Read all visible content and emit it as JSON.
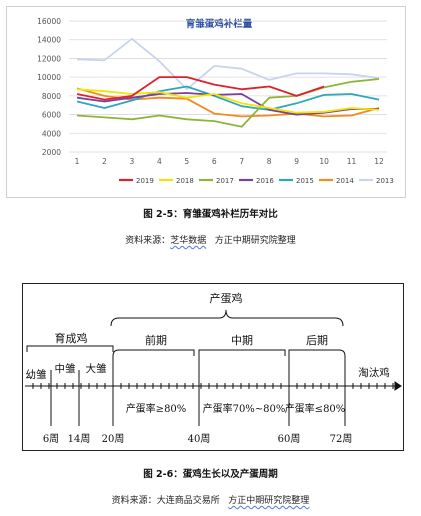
{
  "chart_data": {
    "type": "line",
    "title": "育雏蛋鸡补栏量",
    "categories": [
      1,
      2,
      3,
      4,
      5,
      6,
      7,
      8,
      9,
      10,
      11,
      12
    ],
    "ylim": [
      2000,
      16000
    ],
    "yticks": [
      2000,
      4000,
      6000,
      8000,
      10000,
      12000,
      14000,
      16000
    ],
    "grid": true,
    "legend_placement": "bottom",
    "series": [
      {
        "name": "2019",
        "color": "#e0202a",
        "values": [
          8200,
          7600,
          8000,
          10000,
          10000,
          9200,
          8700,
          9000,
          8000,
          9000,
          null,
          null
        ]
      },
      {
        "name": "2018",
        "color": "#f2e600",
        "values": [
          8700,
          8500,
          8200,
          8400,
          7800,
          8200,
          7200,
          6700,
          6200,
          6300,
          6700,
          6500
        ]
      },
      {
        "name": "2017",
        "color": "#8fb43a",
        "values": [
          5900,
          5700,
          5500,
          5900,
          5500,
          5300,
          4700,
          7800,
          8000,
          8900,
          9500,
          9800
        ]
      },
      {
        "name": "2016",
        "color": "#7b3fa0",
        "values": [
          7800,
          7400,
          7800,
          8200,
          8300,
          8100,
          8200,
          6500,
          6000,
          6200,
          6600,
          6600
        ]
      },
      {
        "name": "2015",
        "color": "#2fa6bf",
        "values": [
          7400,
          6700,
          7500,
          8500,
          9000,
          8000,
          6900,
          6500,
          7200,
          8100,
          8200,
          7600
        ]
      },
      {
        "name": "2014",
        "color": "#f28a1e",
        "values": [
          8800,
          8000,
          7600,
          7800,
          7700,
          6100,
          5800,
          5900,
          6100,
          5800,
          5900,
          6700
        ]
      },
      {
        "name": "2013",
        "color": "#c8d4ee",
        "values": [
          11900,
          11800,
          14100,
          11700,
          8700,
          11200,
          10900,
          9700,
          10400,
          10400,
          10300,
          9900
        ]
      }
    ]
  },
  "caption1": {
    "number": "图 2-5：",
    "text": "育雏蛋鸡补栏历年对比"
  },
  "source1": {
    "label": "资料来源：",
    "name": "芝华数据",
    "org": "方正中期研究院整理"
  },
  "diagram": {
    "top_label": "产蛋鸡",
    "stage_growing": "育成鸡",
    "stage_early": "前期",
    "stage_mid": "中期",
    "stage_late": "后期",
    "stage_chick": "幼雏",
    "stage_middle_chick": "中雏",
    "stage_big_chick": "大雏",
    "stage_cull": "淘汰鸡",
    "rate_early": "产蛋率≥80%",
    "rate_mid": "产蛋率70%~80%",
    "rate_late": "产蛋率≤80%",
    "week_6": "6周",
    "week_14": "14周",
    "week_20": "20周",
    "week_40": "40周",
    "week_60": "60周",
    "week_72": "72周"
  },
  "caption2": {
    "number": "图 2-6：",
    "text": "蛋鸡生长以及产蛋周期"
  },
  "source2": {
    "label": "资料来源：",
    "name": "大连商品交易所",
    "org": "方正中期研究院整理"
  }
}
